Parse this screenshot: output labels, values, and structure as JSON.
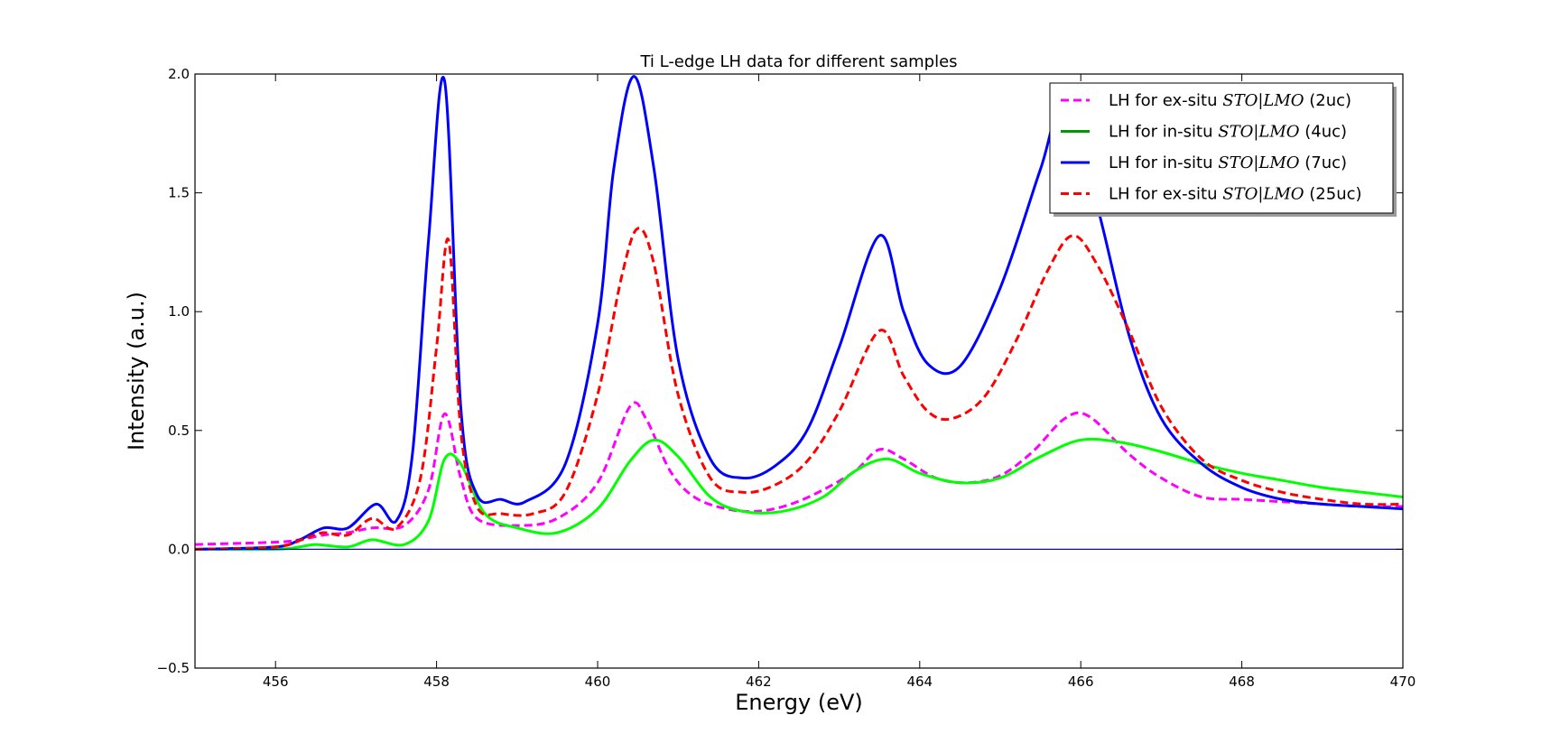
{
  "chart_data": {
    "type": "line",
    "title": "Ti L-edge LH data for different samples",
    "xlabel": "Energy (eV)",
    "ylabel": "Intensity (a.u.)",
    "xlim": [
      455,
      470
    ],
    "ylim": [
      -0.5,
      2.0
    ],
    "xticks": [
      456,
      458,
      460,
      462,
      464,
      466,
      468,
      470
    ],
    "yticks": [
      -0.5,
      0.0,
      0.5,
      1.0,
      1.5,
      2.0
    ],
    "xtick_labels": [
      "456",
      "458",
      "460",
      "462",
      "464",
      "466",
      "468",
      "470"
    ],
    "ytick_labels": [
      "−0.5",
      "0.0",
      "0.5",
      "1.0",
      "1.5",
      "2.0"
    ],
    "grid": false,
    "legend_position": "top-right",
    "zero_line": {
      "y": 0.0,
      "color": "#0000ff"
    },
    "series": [
      {
        "name": "LH for ex-situ STO|LMO (2uc)",
        "legend_prefix": "LH for ex-situ ",
        "legend_math": "STO|LMO",
        "legend_suffix": " (2uc)",
        "color": "#ff00ff",
        "dash": "dashed",
        "x": [
          455.0,
          456.0,
          456.3,
          456.6,
          456.9,
          457.2,
          457.6,
          457.9,
          458.1,
          458.3,
          458.5,
          459.0,
          459.5,
          460.0,
          460.4,
          460.6,
          460.9,
          461.2,
          461.6,
          462.0,
          462.4,
          462.8,
          463.2,
          463.5,
          463.8,
          464.2,
          464.6,
          465.0,
          465.4,
          465.8,
          466.1,
          466.6,
          467.0,
          467.5,
          468.0,
          468.5,
          469.0,
          469.5,
          470.0
        ],
        "y": [
          0.02,
          0.03,
          0.04,
          0.06,
          0.07,
          0.09,
          0.1,
          0.25,
          0.57,
          0.3,
          0.13,
          0.1,
          0.13,
          0.28,
          0.6,
          0.55,
          0.33,
          0.22,
          0.17,
          0.16,
          0.19,
          0.25,
          0.33,
          0.42,
          0.38,
          0.3,
          0.28,
          0.31,
          0.41,
          0.55,
          0.56,
          0.4,
          0.3,
          0.22,
          0.21,
          0.2,
          0.19,
          0.18,
          0.18
        ]
      },
      {
        "name": "LH for in-situ STO|LMO (4uc)",
        "legend_prefix": "LH for in-situ ",
        "legend_math": "STO|LMO",
        "legend_suffix": " (4uc)",
        "color": "#00ff00",
        "legend_color": "#009900",
        "dash": "solid",
        "x": [
          455.0,
          456.0,
          456.3,
          456.5,
          456.9,
          457.2,
          457.6,
          457.9,
          458.1,
          458.3,
          458.6,
          459.0,
          459.5,
          460.0,
          460.4,
          460.7,
          461.0,
          461.4,
          461.8,
          462.3,
          462.8,
          463.2,
          463.6,
          464.0,
          464.5,
          465.0,
          465.5,
          466.0,
          466.5,
          467.0,
          467.5,
          468.0,
          468.5,
          469.0,
          469.5,
          470.0
        ],
        "y": [
          0.0,
          0.0,
          0.01,
          0.02,
          0.01,
          0.04,
          0.02,
          0.12,
          0.38,
          0.36,
          0.15,
          0.09,
          0.07,
          0.17,
          0.37,
          0.46,
          0.39,
          0.22,
          0.16,
          0.16,
          0.22,
          0.33,
          0.38,
          0.32,
          0.28,
          0.3,
          0.39,
          0.46,
          0.45,
          0.41,
          0.36,
          0.32,
          0.29,
          0.26,
          0.24,
          0.22
        ]
      },
      {
        "name": "LH for in-situ STO|LMO (7uc)",
        "legend_prefix": "LH for in-situ ",
        "legend_math": "STO|LMO",
        "legend_suffix": " (7uc)",
        "color": "#0000ff",
        "dash": "solid",
        "x": [
          455.0,
          456.0,
          456.3,
          456.6,
          456.9,
          457.25,
          457.5,
          457.7,
          457.9,
          458.1,
          458.3,
          458.5,
          458.8,
          459.1,
          459.6,
          460.0,
          460.2,
          460.45,
          460.7,
          461.0,
          461.4,
          461.8,
          462.2,
          462.6,
          463.0,
          463.5,
          463.8,
          464.1,
          464.5,
          465.0,
          465.5,
          465.8,
          466.2,
          466.6,
          467.0,
          467.5,
          468.0,
          468.5,
          469.0,
          469.5,
          470.0
        ],
        "y": [
          0.0,
          0.01,
          0.04,
          0.09,
          0.09,
          0.19,
          0.12,
          0.4,
          1.3,
          1.97,
          0.6,
          0.23,
          0.21,
          0.2,
          0.36,
          0.95,
          1.6,
          1.99,
          1.6,
          0.8,
          0.38,
          0.3,
          0.35,
          0.5,
          0.85,
          1.32,
          1.0,
          0.78,
          0.77,
          1.1,
          1.6,
          1.88,
          1.45,
          0.9,
          0.55,
          0.36,
          0.26,
          0.21,
          0.19,
          0.18,
          0.17
        ]
      },
      {
        "name": "LH for ex-situ STO|LMO (25uc)",
        "legend_prefix": "LH for ex-situ ",
        "legend_math": "STO|LMO",
        "legend_suffix": " (25uc)",
        "color": "#ff0000",
        "dash": "dashed",
        "x": [
          455.0,
          456.0,
          456.4,
          456.6,
          456.9,
          457.2,
          457.5,
          457.8,
          458.0,
          458.15,
          458.3,
          458.5,
          458.8,
          459.2,
          459.6,
          460.0,
          460.3,
          460.5,
          460.7,
          461.0,
          461.4,
          461.8,
          462.2,
          462.6,
          463.0,
          463.5,
          463.8,
          464.1,
          464.4,
          464.8,
          465.2,
          465.6,
          465.9,
          466.2,
          466.6,
          467.0,
          467.5,
          468.0,
          468.5,
          469.0,
          469.5,
          470.0
        ],
        "y": [
          0.0,
          0.01,
          0.05,
          0.07,
          0.06,
          0.13,
          0.09,
          0.3,
          0.85,
          1.3,
          0.5,
          0.18,
          0.15,
          0.15,
          0.24,
          0.65,
          1.15,
          1.35,
          1.2,
          0.65,
          0.3,
          0.24,
          0.27,
          0.37,
          0.58,
          0.92,
          0.73,
          0.58,
          0.55,
          0.64,
          0.88,
          1.18,
          1.32,
          1.2,
          0.92,
          0.6,
          0.38,
          0.29,
          0.24,
          0.21,
          0.19,
          0.19
        ]
      }
    ]
  }
}
